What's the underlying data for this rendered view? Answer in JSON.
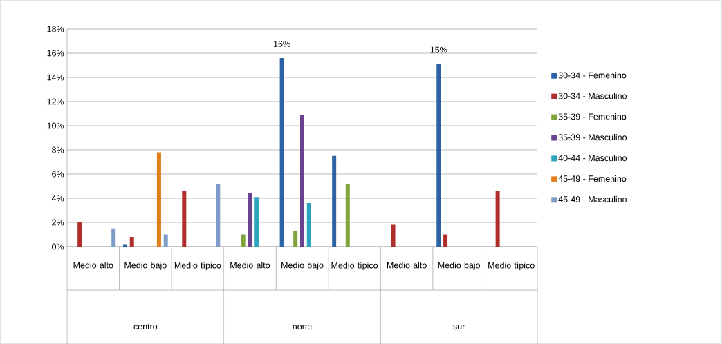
{
  "chart_data": {
    "type": "bar",
    "categories": [
      "Medio alto",
      "Medio bajo",
      "Medio típico",
      "Medio alto",
      "Medio bajo",
      "Medio típico",
      "Medio alto",
      "Medio bajo",
      "Medio típico"
    ],
    "annotations": [
      "centro",
      "norte",
      "sur"
    ],
    "series": [
      {
        "name": "30-34 - Femenino",
        "color": "#2e62a6",
        "values": [
          null,
          0.2,
          null,
          null,
          15.6,
          7.5,
          null,
          15.1,
          null
        ],
        "value_labels": [
          null,
          null,
          null,
          null,
          "16%",
          null,
          null,
          "15%",
          null
        ]
      },
      {
        "name": "30-34 - Masculino",
        "color": "#b02e2a",
        "values": [
          2.0,
          0.8,
          4.6,
          null,
          null,
          null,
          1.8,
          1.0,
          4.6
        ]
      },
      {
        "name": "35-39 - Femenino",
        "color": "#7fa43a",
        "values": [
          null,
          null,
          null,
          1.0,
          1.3,
          5.2,
          null,
          null,
          null
        ]
      },
      {
        "name": "35-39 - Masculino",
        "color": "#6a4290",
        "values": [
          null,
          null,
          null,
          4.4,
          10.9,
          null,
          null,
          null,
          null
        ]
      },
      {
        "name": "40-44 - Masculino",
        "color": "#2ea3bd",
        "values": [
          null,
          null,
          null,
          4.1,
          3.6,
          null,
          null,
          null,
          null
        ]
      },
      {
        "name": "45-49 - Femenino",
        "color": "#e37d1c",
        "values": [
          null,
          7.8,
          null,
          null,
          null,
          null,
          null,
          null,
          null
        ]
      },
      {
        "name": "45-49 - Masculino",
        "color": "#7f9cc9",
        "values": [
          1.5,
          1.0,
          5.2,
          null,
          null,
          null,
          null,
          null,
          null
        ]
      }
    ],
    "ylim": [
      0,
      18
    ],
    "yticks": [
      {
        "value": 0,
        "label": "0%"
      },
      {
        "value": 2,
        "label": "2%"
      },
      {
        "value": 4,
        "label": "4%"
      },
      {
        "value": 6,
        "label": "6%"
      },
      {
        "value": 8,
        "label": "8%"
      },
      {
        "value": 10,
        "label": "10%"
      },
      {
        "value": 12,
        "label": "12%"
      },
      {
        "value": 14,
        "label": "14%"
      },
      {
        "value": 16,
        "label": "16%"
      },
      {
        "value": 18,
        "label": "18%"
      }
    ],
    "grid": "y",
    "legend": "right"
  }
}
